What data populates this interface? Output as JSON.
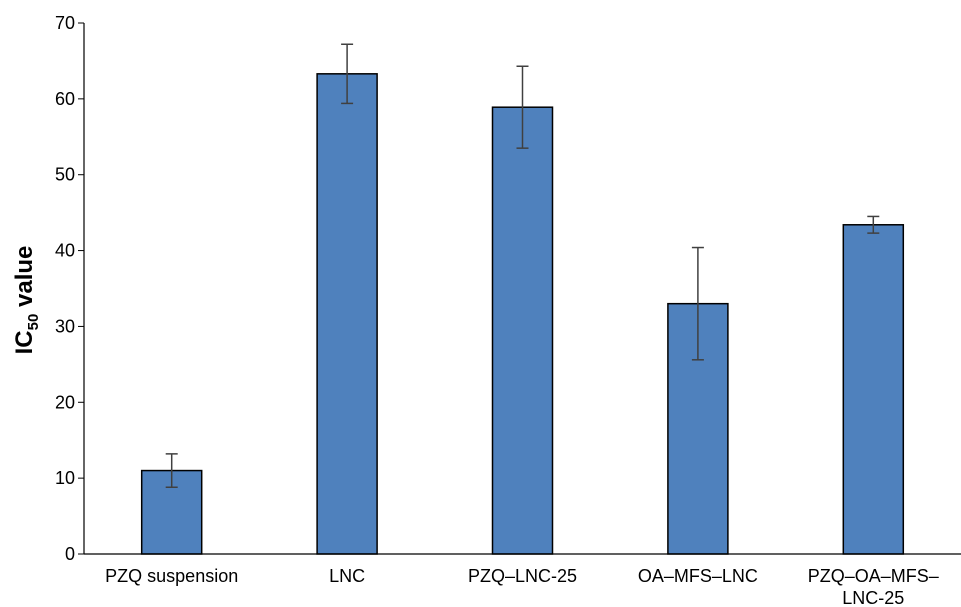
{
  "chart_data": {
    "type": "bar",
    "categories": [
      [
        "PZQ suspension"
      ],
      [
        "LNC"
      ],
      [
        "PZQ–LNC-25"
      ],
      [
        "OA–MFS–LNC"
      ],
      [
        "PZQ–OA–MFS–",
        "LNC-25"
      ]
    ],
    "values": [
      11.0,
      63.3,
      58.9,
      33.0,
      43.4
    ],
    "error": [
      2.2,
      3.9,
      5.4,
      7.4,
      1.1
    ],
    "ylabel": {
      "main": "IC",
      "sub": "50",
      "rest": " value"
    },
    "xlabel": "",
    "title": "",
    "ylim": [
      0,
      70
    ],
    "yticks": [
      0,
      10,
      20,
      30,
      40,
      50,
      60,
      70
    ],
    "grid": false,
    "legend": "none",
    "colors": {
      "bar": "#4f81bd",
      "bar_edge": "#000000",
      "error": "#404040",
      "axis": "#000000"
    }
  }
}
